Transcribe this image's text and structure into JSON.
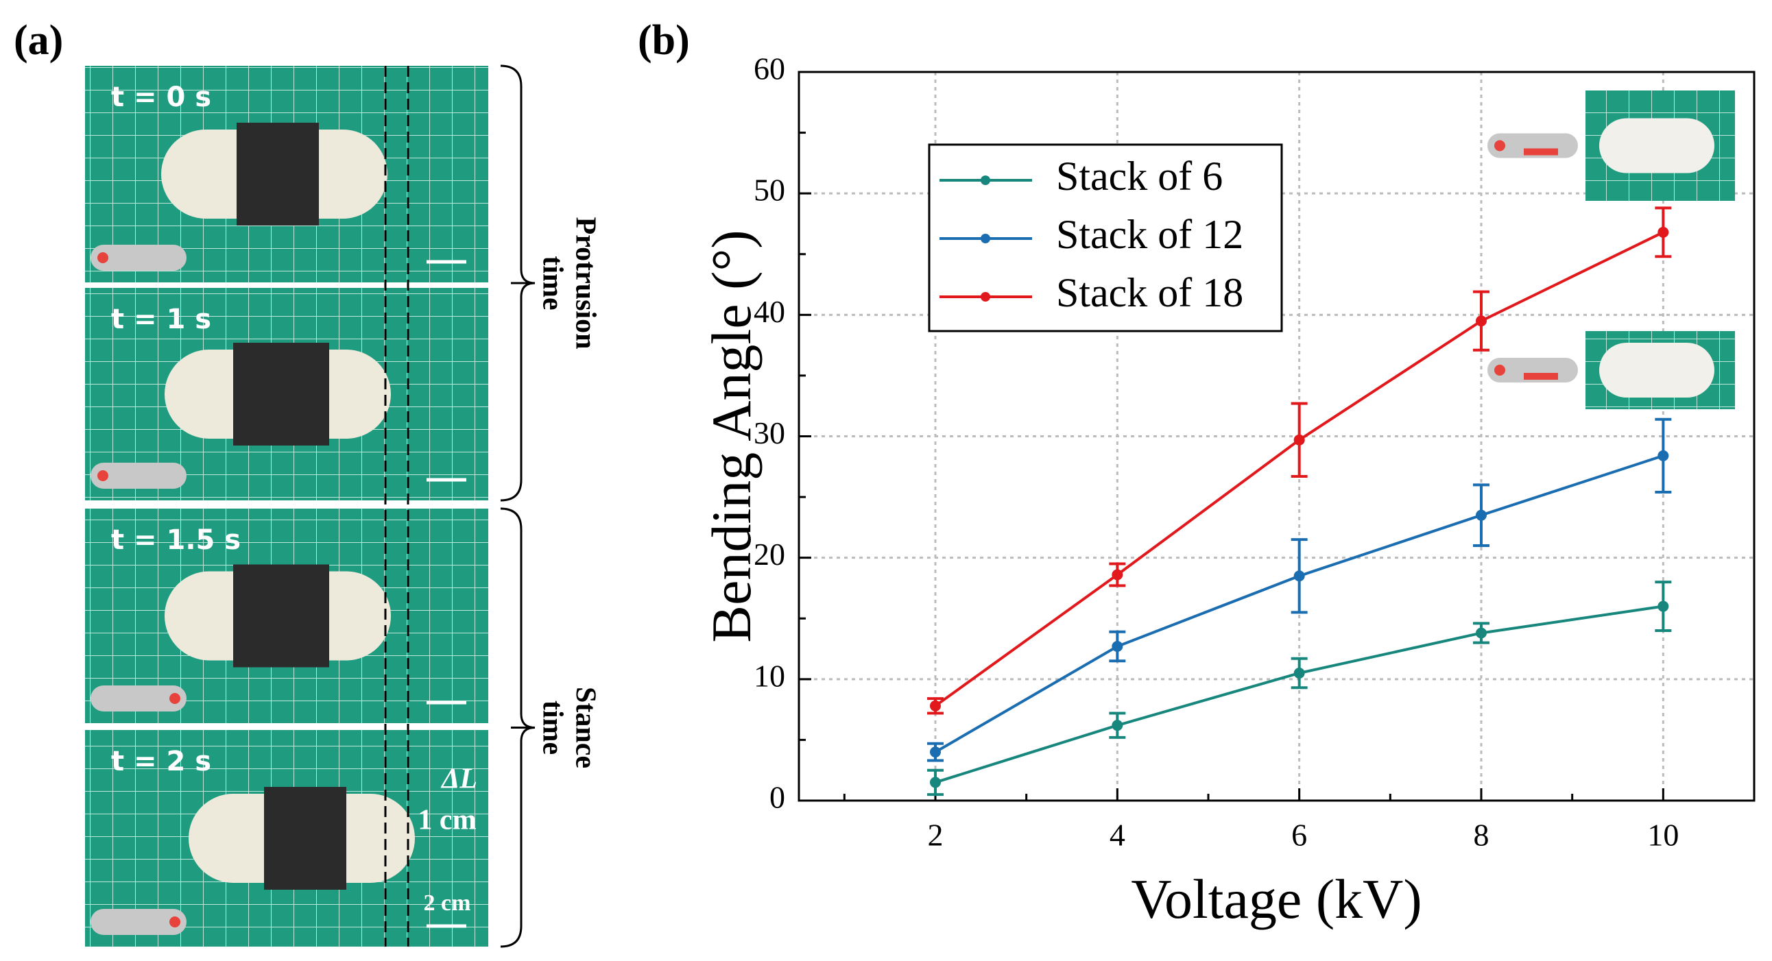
{
  "panel_a": {
    "label": "(a)",
    "frames": [
      "t = 0 s",
      "t = 1 s",
      "t = 1.5 s",
      "t = 2 s"
    ],
    "delta": "ΔL",
    "delta_value": "1 cm",
    "scale": "2 cm",
    "phases": [
      [
        "Protrusion",
        "time"
      ],
      [
        "Stance",
        "time"
      ]
    ]
  },
  "chart_data": {
    "type": "line",
    "label": "(b)",
    "x_label": "Voltage (kV)",
    "y_label": "Bending Angle (°)",
    "x": [
      2,
      4,
      6,
      8,
      10
    ],
    "series": [
      {
        "name": "Stack of 6",
        "color": "#17877e",
        "values": [
          1.5,
          6.2,
          10.5,
          13.8,
          16.0
        ],
        "errors": [
          1.0,
          1.0,
          1.2,
          0.8,
          2.0
        ]
      },
      {
        "name": "Stack of 12",
        "color": "#1a6db0",
        "values": [
          4.0,
          12.7,
          18.5,
          23.5,
          28.4
        ],
        "errors": [
          0.7,
          1.2,
          3.0,
          2.5,
          3.0
        ]
      },
      {
        "name": "Stack of 18",
        "color": "#e2191c",
        "values": [
          7.8,
          18.6,
          29.7,
          39.5,
          46.8
        ],
        "errors": [
          0.6,
          0.9,
          3.0,
          2.4,
          2.0
        ]
      }
    ],
    "xlim": [
      0.5,
      11
    ],
    "xticks": [
      2,
      4,
      6,
      8,
      10
    ],
    "xminorticks": [
      1,
      3,
      5,
      7,
      9
    ],
    "ylim": [
      0,
      60
    ],
    "yticks": [
      0,
      10,
      20,
      30,
      40,
      50,
      60
    ],
    "yminorticks": [
      5,
      15,
      25,
      35,
      45,
      55
    ],
    "grid": true,
    "legend": "upper left"
  }
}
